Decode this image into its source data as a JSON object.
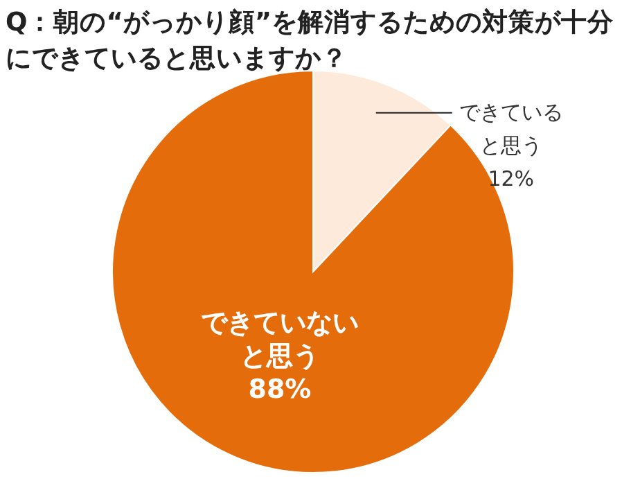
{
  "chart_data": {
    "type": "pie",
    "title": "Q：朝の“がっかり顔”を解消するための対策が十分にできていると思いますか？",
    "categories": [
      "できていると思う",
      "できていないと思う"
    ],
    "values": [
      12,
      88
    ],
    "colors": [
      "#fdeada",
      "#e46c0a"
    ],
    "value_labels": [
      "12%",
      "88%"
    ]
  }
}
